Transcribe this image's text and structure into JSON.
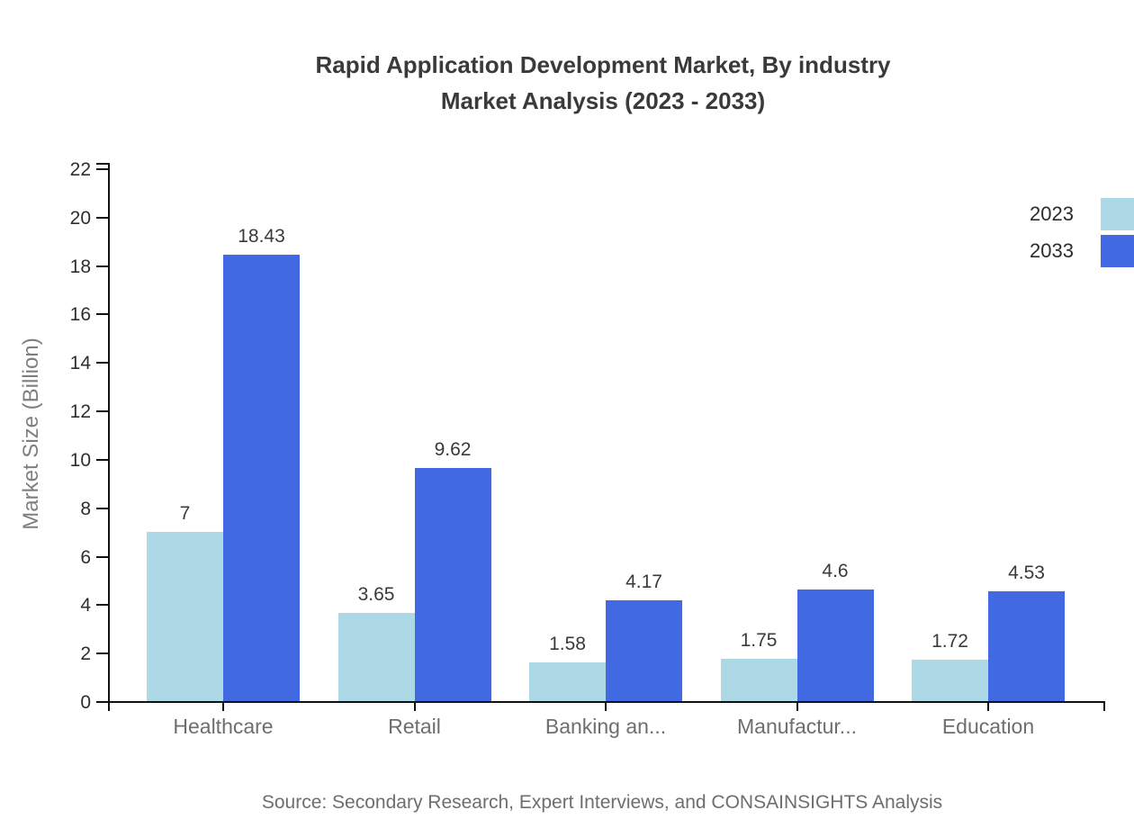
{
  "title": {
    "line1": "Rapid Application Development Market, By industry",
    "line2": "Market Analysis (2023 - 2033)"
  },
  "source": "Source: Secondary Research, Expert Interviews, and CONSAINSIGHTS Analysis",
  "chart_data": {
    "type": "bar",
    "categories": [
      "Healthcare",
      "Retail",
      "Banking an...",
      "Manufactur...",
      "Education"
    ],
    "series": [
      {
        "name": "2023",
        "color": "#ADD8E6",
        "values": [
          7,
          3.65,
          1.58,
          1.75,
          1.72
        ],
        "labels": [
          "7",
          "3.65",
          "1.58",
          "1.75",
          "1.72"
        ]
      },
      {
        "name": "2033",
        "color": "#4169E1",
        "values": [
          18.43,
          9.62,
          4.17,
          4.6,
          4.53
        ],
        "labels": [
          "18.43",
          "9.62",
          "4.17",
          "4.6",
          "4.53"
        ]
      }
    ],
    "ylabel": "Market Size (Billion)",
    "xlabel": "",
    "ylim": [
      0,
      22
    ],
    "ytick_step": 2,
    "ytick_labels": [
      "0",
      "2",
      "4",
      "6",
      "8",
      "10",
      "12",
      "14",
      "16",
      "18",
      "20",
      "22"
    ],
    "grid": false,
    "legend_position": "top-right"
  }
}
